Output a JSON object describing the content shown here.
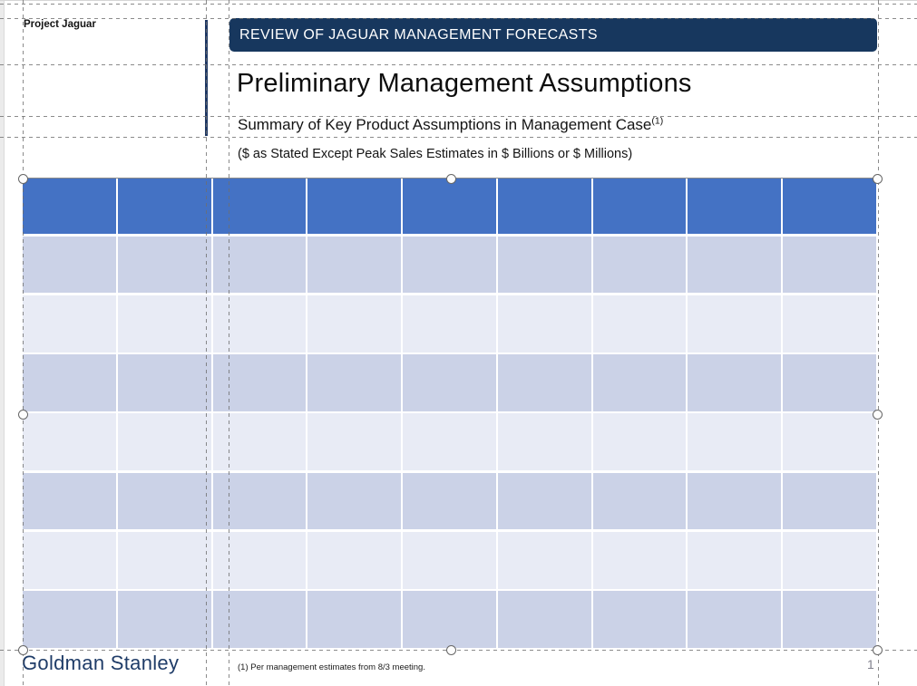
{
  "header": {
    "project_label": "Project Jaguar",
    "banner_title": "REVIEW OF JAGUAR MANAGEMENT FORECASTS",
    "slide_title": "Preliminary Management Assumptions",
    "subtitle": "Summary of Key Product Assumptions in Management Case",
    "subtitle_superscript": "(1)",
    "units_note": "($ as Stated Except Peak Sales Estimates in $ Billions or $ Millions)"
  },
  "table": {
    "columns": 9,
    "body_rows": 7,
    "cells_empty": true,
    "selected": true,
    "selection_handles": 8
  },
  "footer": {
    "brand": "Goldman Stanley",
    "footnote": "(1) Per management estimates from 8/3 meeting.",
    "page_number": "1"
  },
  "colors": {
    "banner_bg": "#17375e",
    "accent_bar": "#1f3864",
    "table_header": "#4472c4",
    "band_dark": "#cbd2e7",
    "band_light": "#e8ebf5",
    "brand_text": "#1f3c68",
    "page_number": "#80808c"
  }
}
